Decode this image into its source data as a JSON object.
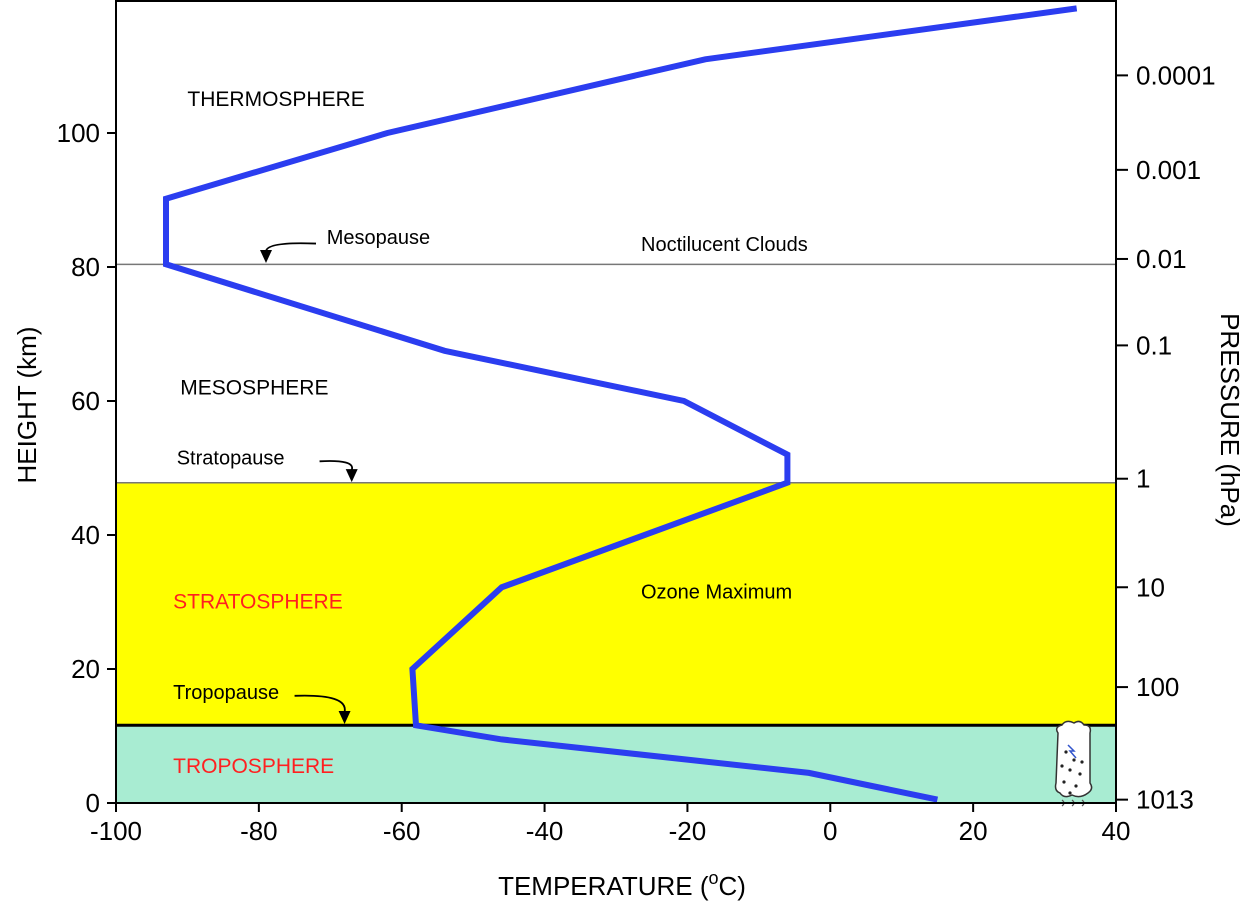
{
  "chart_data": {
    "type": "line",
    "xlabel": "TEMPERATURE (",
    "xlabel_superscript": "o",
    "xlabel_suffix": "C)",
    "ylabel": "HEIGHT (km)",
    "y2label": "PRESSURE (hPa)",
    "xlim": [
      -100,
      40
    ],
    "ylim": [
      0,
      118
    ],
    "x_ticks": [
      -100,
      -80,
      -60,
      -40,
      -20,
      0,
      20,
      40
    ],
    "x_tick_labels": [
      "-100",
      "-80",
      "-60",
      "-40",
      "-20",
      "0",
      "20",
      "40"
    ],
    "y_ticks": [
      0,
      20,
      40,
      60,
      80,
      100
    ],
    "y_tick_labels": [
      "0",
      "20",
      "40",
      "60",
      "80",
      "100"
    ],
    "pressure_ticks": [
      {
        "label": "0.0001",
        "height_km": 108.6
      },
      {
        "label": "0.001",
        "height_km": 94.5
      },
      {
        "label": "0.01",
        "height_km": 81.2
      },
      {
        "label": "0.1",
        "height_km": 68.3
      },
      {
        "label": "1",
        "height_km": 48.4
      },
      {
        "label": "10",
        "height_km": 32.2
      },
      {
        "label": "100",
        "height_km": 17.3
      },
      {
        "label": "1013",
        "height_km": 0.5
      }
    ],
    "series": [
      {
        "color": "#2b3df0",
        "points": [
          [
            15,
            0.5
          ],
          [
            -3,
            4.5
          ],
          [
            -46,
            9.5
          ],
          [
            -58,
            11.6
          ],
          [
            -58.5,
            20
          ],
          [
            -46,
            32.2
          ],
          [
            -6,
            47.8
          ],
          [
            -6,
            52
          ],
          [
            -20.5,
            60
          ],
          [
            -54,
            67.5
          ],
          [
            -93,
            80.4
          ],
          [
            -93,
            90.2
          ],
          [
            -62,
            100
          ],
          [
            -17.5,
            111
          ],
          [
            34.5,
            118.6
          ]
        ]
      }
    ],
    "bands": [
      {
        "from": 0,
        "to": 11.6,
        "color": "#a8ecd2"
      },
      {
        "from": 11.6,
        "to": 47.8,
        "color": "#ffff00"
      }
    ],
    "boundary_lines": [
      {
        "y": 11.6,
        "color": "#000000"
      },
      {
        "y": 47.8,
        "color": "#777777"
      },
      {
        "y": 80.4,
        "color": "#777777"
      }
    ],
    "layer_labels": [
      {
        "text": "THERMOSPHERE",
        "x": -90,
        "y": 104,
        "color": "#000000"
      },
      {
        "text": "MESOSPHERE",
        "x": -91,
        "y": 61,
        "color": "#000000"
      },
      {
        "text": "STRATOSPHERE",
        "x": -92,
        "y": 29,
        "color": "#ff2020"
      },
      {
        "text": "TROPOSPHERE",
        "x": -92,
        "y": 4.5,
        "color": "#ff2020"
      }
    ],
    "annotations": [
      {
        "text": "Mesopause",
        "x": -70.5,
        "y": 83.4,
        "arrow_to": [
          -79,
          80.6
        ],
        "arrow_from": [
          -72,
          83.5
        ]
      },
      {
        "text": "Stratopause",
        "x": -91.5,
        "y": 50.5,
        "arrow_to": [
          -67,
          47.9
        ],
        "arrow_from": [
          -71.5,
          51
        ]
      },
      {
        "text": "Tropopause",
        "x": -92,
        "y": 15.5,
        "color": "#ff2020",
        "arrow_to": [
          -68,
          11.8
        ],
        "arrow_from": [
          -75,
          16
        ]
      },
      {
        "text": "Noctilucent Clouds",
        "x": -26.5,
        "y": 82.4
      },
      {
        "text": "Ozone Maximum",
        "x": -26.5,
        "y": 30.5
      }
    ],
    "grid": false
  }
}
